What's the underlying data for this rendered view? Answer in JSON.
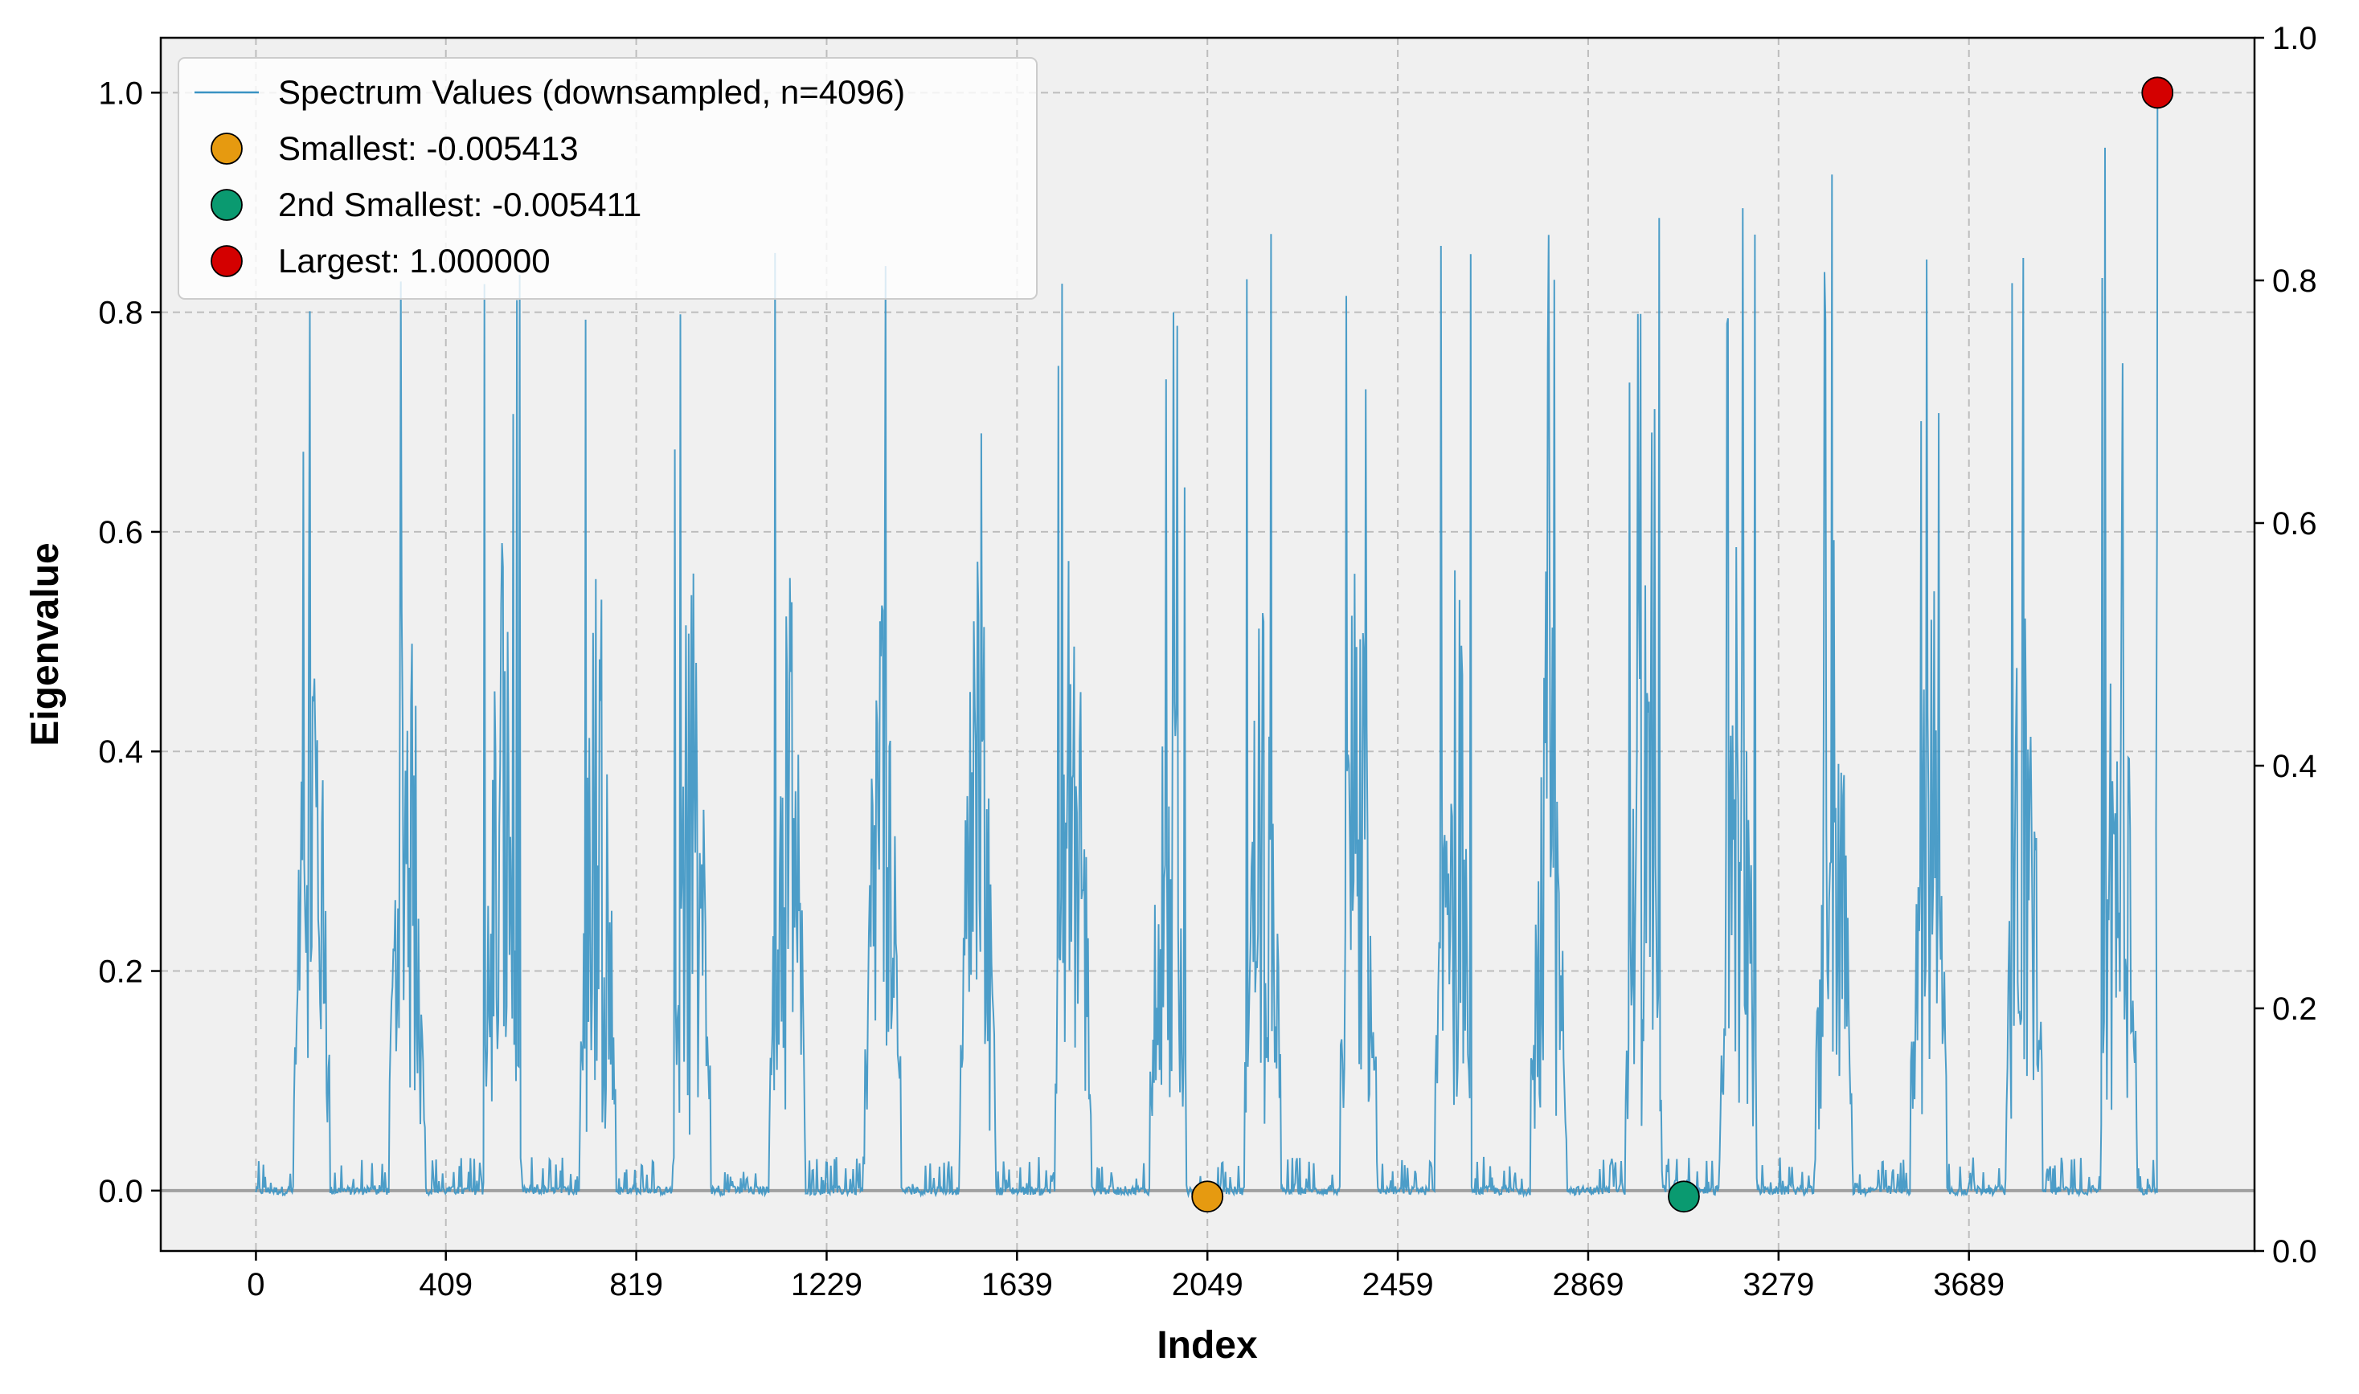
{
  "chart_data": {
    "type": "line",
    "title": "",
    "xlabel": "Index",
    "ylabel": "Eigenvalue",
    "xlim": [
      -205,
      4304
    ],
    "ylim": [
      -0.055,
      1.05
    ],
    "right_ylim": [
      0.0,
      1.0
    ],
    "x_ticks": [
      0,
      409,
      819,
      1229,
      1639,
      2049,
      2459,
      2869,
      3279,
      3689
    ],
    "x_tick_labels": [
      "0",
      "409",
      "819",
      "1229",
      "1639",
      "2049",
      "2459",
      "2869",
      "3279",
      "3689"
    ],
    "y_ticks": [
      0.0,
      0.2,
      0.4,
      0.6,
      0.8,
      1.0
    ],
    "y_tick_labels": [
      "0.0",
      "0.2",
      "0.4",
      "0.6",
      "0.8",
      "1.0"
    ],
    "right_y_ticks": [
      0.0,
      0.2,
      0.4,
      0.6,
      0.8,
      1.0
    ],
    "right_y_tick_labels": [
      "0.0",
      "0.2",
      "0.4",
      "0.6",
      "0.8",
      "1.0"
    ],
    "grid": true,
    "legend_position": "top-left",
    "colors": {
      "line": "#3a93c3",
      "smallest": "#e69a10",
      "second": "#0a9a70",
      "largest": "#d40000",
      "background": "#f0f0f0",
      "zero_line": "#a0a0a0"
    },
    "series": [
      {
        "name": "Spectrum Values (downsampled, n=4096)",
        "n": 4096,
        "pattern": {
          "cycle_count": 20,
          "cycle_length": 204.8,
          "block_start": [
            0.19,
            0.4,
            0.6,
            0.81,
            1.01,
            1.21,
            1.41,
            1.62,
            1.82,
            2.02,
            2.23,
            2.43,
            2.63,
            2.84,
            3.04,
            3.24,
            3.45,
            3.65,
            3.86,
            4.06
          ],
          "block_peaks": [
            0.83,
            0.89,
            0.85,
            0.89,
            0.88,
            0.91,
            0.9,
            0.9,
            0.91,
            0.85,
            0.91,
            0.86,
            0.91,
            0.9,
            0.91,
            0.91,
            0.95,
            0.92,
            0.9,
            0.96
          ]
        }
      }
    ],
    "points": [
      {
        "name": "Smallest: -0.005413",
        "x": 2049,
        "y": -0.005413
      },
      {
        "name": "2nd Smallest: -0.005411",
        "x": 3075,
        "y": -0.005411
      },
      {
        "name": "Largest: 1.000000",
        "x": 4095,
        "y": 1.0
      }
    ]
  }
}
